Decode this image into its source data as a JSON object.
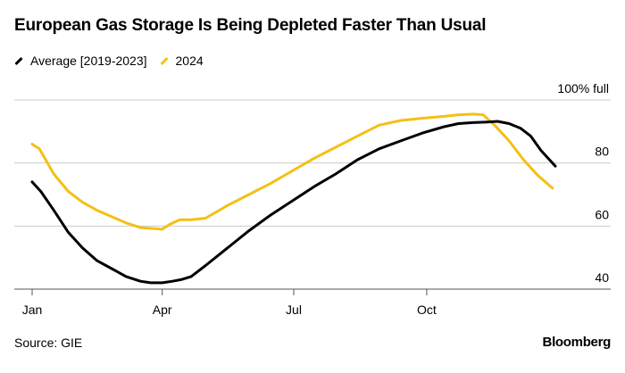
{
  "title": "European Gas Storage Is Being Depleted Faster Than Usual",
  "source": "Source: GIE",
  "brand": "Bloomberg",
  "colors": {
    "average": "#000000",
    "y2024": "#f4c016",
    "grid": "#cccccc",
    "axis": "#555555"
  },
  "chart_data": {
    "type": "line",
    "title": "European Gas Storage Is Being Depleted Faster Than Usual",
    "xlabel": "",
    "ylabel": "% full",
    "x_domain_days": [
      0,
      365
    ],
    "ylim": [
      37,
      100
    ],
    "x_ticks": [
      {
        "day": 0,
        "label": "Jan"
      },
      {
        "day": 90,
        "label": "Apr"
      },
      {
        "day": 181,
        "label": "Jul"
      },
      {
        "day": 273,
        "label": "Oct"
      }
    ],
    "y_ticks": [
      {
        "value": 40,
        "label": "40"
      },
      {
        "value": 60,
        "label": "60"
      },
      {
        "value": 80,
        "label": "80"
      },
      {
        "value": 100,
        "label": "100% full"
      }
    ],
    "series": [
      {
        "name": "Average [2019-2023]",
        "color": "#000000",
        "x": [
          0,
          6,
          15,
          25,
          35,
          45,
          55,
          65,
          75,
          82,
          90,
          97,
          103,
          110,
          120,
          135,
          150,
          165,
          180,
          195,
          210,
          225,
          240,
          255,
          270,
          285,
          295,
          305,
          315,
          322,
          330,
          338,
          345,
          352,
          358,
          362
        ],
        "values": [
          74,
          71,
          65,
          58,
          53,
          49,
          46.5,
          44,
          42.5,
          42,
          42,
          42.5,
          43,
          44,
          47.5,
          53,
          58.5,
          63.5,
          68,
          72.5,
          76.5,
          81,
          84.5,
          87,
          89.5,
          91.5,
          92.5,
          92.8,
          93,
          93.2,
          92.5,
          91,
          88.5,
          84,
          81,
          79
        ]
      },
      {
        "name": "2024",
        "color": "#f4c016",
        "x": [
          0,
          5,
          15,
          25,
          35,
          45,
          55,
          65,
          75,
          85,
          90,
          95,
          102,
          110,
          120,
          135,
          150,
          165,
          180,
          195,
          210,
          225,
          240,
          255,
          270,
          285,
          295,
          305,
          312,
          320,
          330,
          340,
          350,
          360
        ],
        "values": [
          86,
          84.5,
          76.5,
          71,
          67.5,
          65,
          63,
          61,
          59.5,
          59.2,
          59,
          60.5,
          62,
          62,
          62.5,
          66.5,
          70,
          73.5,
          77.5,
          81.5,
          85,
          88.5,
          92,
          93.5,
          94.2,
          94.8,
          95.3,
          95.5,
          95.3,
          92,
          87,
          81,
          76,
          72
        ]
      }
    ]
  }
}
